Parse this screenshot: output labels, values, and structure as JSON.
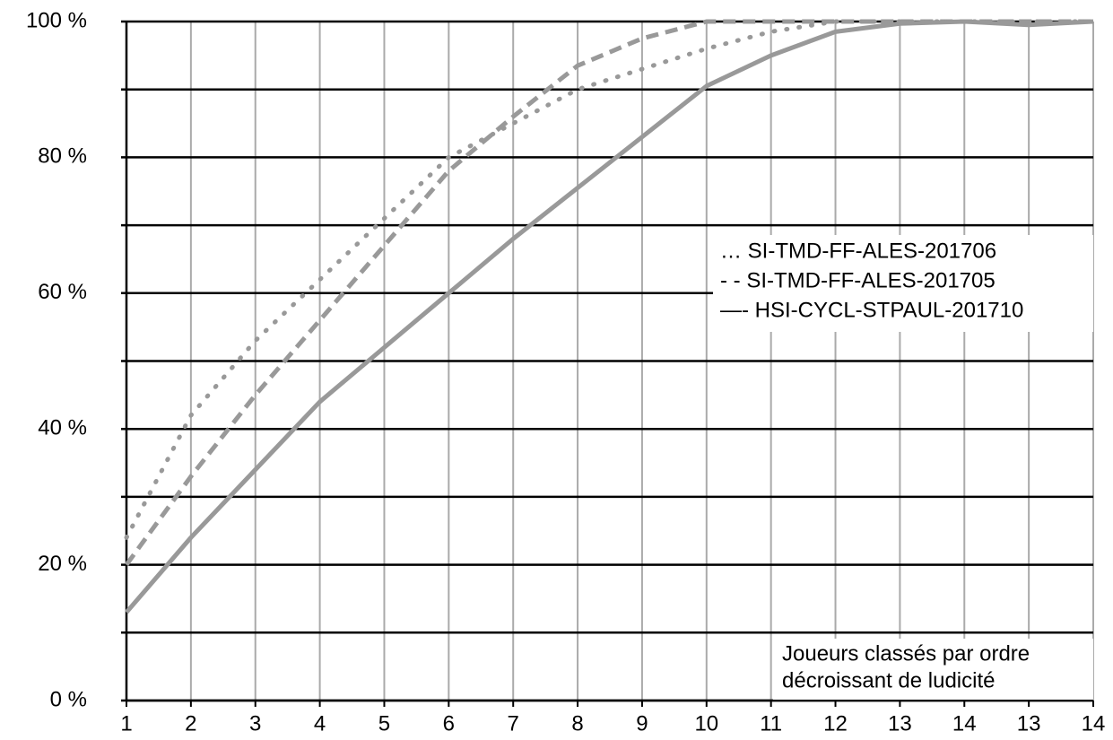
{
  "chart_data": {
    "type": "line",
    "categories": [
      "1",
      "2",
      "3",
      "4",
      "5",
      "6",
      "7",
      "8",
      "9",
      "10",
      "11",
      "12",
      "13",
      "14",
      "13",
      "14"
    ],
    "series": [
      {
        "name": "… SI-TMD-FF-ALES-201706",
        "color": "#999999",
        "dash": "dotted",
        "values": [
          24,
          42,
          53,
          62,
          71,
          80,
          85,
          90,
          93,
          96,
          98.5,
          100,
          100,
          100,
          100,
          100
        ]
      },
      {
        "name": "- - SI-TMD-FF-ALES-201705",
        "color": "#999999",
        "dash": "dashed",
        "values": [
          20,
          33,
          45,
          56,
          67,
          78,
          86,
          93.5,
          97.5,
          100,
          100,
          100,
          100,
          100,
          100,
          100
        ]
      },
      {
        "name": "—- HSI-CYCL-STPAUL-201710",
        "color": "#999999",
        "dash": "solid",
        "values": [
          13,
          24,
          34,
          44,
          52,
          60,
          68,
          75.5,
          83,
          90.5,
          95,
          98.5,
          99.7,
          100,
          99.5,
          100
        ]
      }
    ],
    "ylim": [
      0,
      100
    ],
    "yticks": [
      {
        "value": 0,
        "label": "0 %"
      },
      {
        "value": 20,
        "label": "20 %"
      },
      {
        "value": 40,
        "label": "40 %"
      },
      {
        "value": 60,
        "label": "60 %"
      },
      {
        "value": 80,
        "label": "80 %"
      },
      {
        "value": 100,
        "label": "100 %"
      }
    ],
    "yticks_minor": [
      10,
      30,
      50,
      70,
      90
    ],
    "grid": true,
    "annotation": [
      "Joueurs classés par ordre",
      "décroissant de ludicité"
    ]
  }
}
